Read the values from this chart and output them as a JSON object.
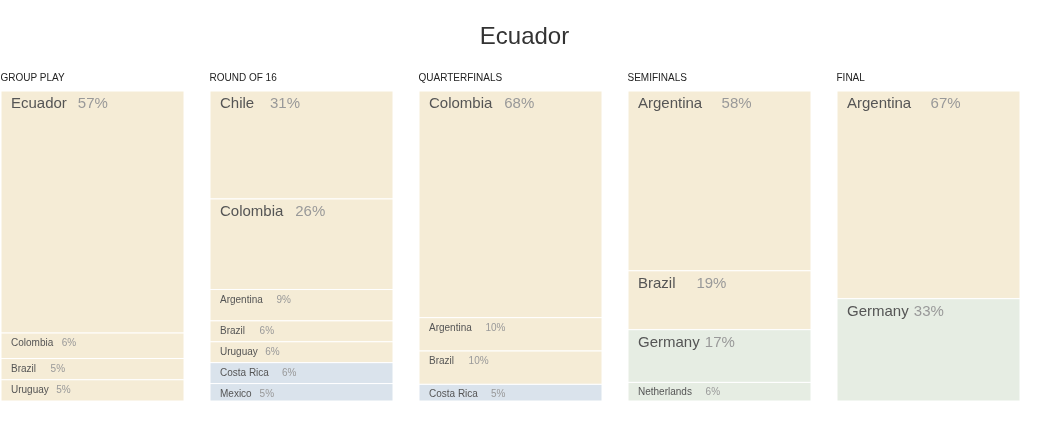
{
  "chart_data": [
    {
      "type": "other",
      "title": "Ecuador"
    },
    {
      "type": "other",
      "title": "GROUP PLAY",
      "categories": [
        "Ecuador",
        "Colombia",
        "Brazil",
        "Uruguay"
      ],
      "values": [
        57,
        6,
        5,
        5
      ],
      "value_labels": [
        "57%",
        "6%",
        "5%",
        "5%"
      ],
      "colors": [
        "#f5ecd6",
        "#f5ecd6",
        "#f5ecd6",
        "#f5ecd6"
      ]
    },
    {
      "type": "other",
      "title": "ROUND OF 16",
      "categories": [
        "Chile",
        "Colombia",
        "Argentina",
        "Brazil",
        "Uruguay",
        "Costa Rica",
        "Mexico"
      ],
      "values": [
        31,
        26,
        9,
        6,
        6,
        6,
        5
      ],
      "value_labels": [
        "31%",
        "26%",
        "9%",
        "6%",
        "6%",
        "6%",
        "5%"
      ],
      "colors": [
        "#f5ecd6",
        "#f5ecd6",
        "#f5ecd6",
        "#f5ecd6",
        "#f5ecd6",
        "#dae3ec",
        "#dae3ec"
      ]
    },
    {
      "type": "other",
      "title": "QUARTERFINALS",
      "categories": [
        "Colombia",
        "Argentina",
        "Brazil",
        "Costa Rica"
      ],
      "values": [
        68,
        10,
        10,
        5
      ],
      "value_labels": [
        "68%",
        "10%",
        "10%",
        "5%"
      ],
      "colors": [
        "#f5ecd6",
        "#f5ecd6",
        "#f5ecd6",
        "#dae3ec"
      ]
    },
    {
      "type": "other",
      "title": "SEMIFINALS",
      "categories": [
        "Argentina",
        "Brazil",
        "Germany",
        "Netherlands"
      ],
      "values": [
        58,
        19,
        17,
        6
      ],
      "value_labels": [
        "58%",
        "19%",
        "17%",
        "6%"
      ],
      "colors": [
        "#f5ecd6",
        "#f5ecd6",
        "#e6ede3",
        "#e6ede3"
      ]
    },
    {
      "type": "other",
      "title": "FINAL",
      "categories": [
        "Argentina",
        "Germany"
      ],
      "values": [
        67,
        33
      ],
      "value_labels": [
        "67%",
        "33%"
      ],
      "colors": [
        "#f5ecd6",
        "#e6ede3"
      ]
    }
  ]
}
